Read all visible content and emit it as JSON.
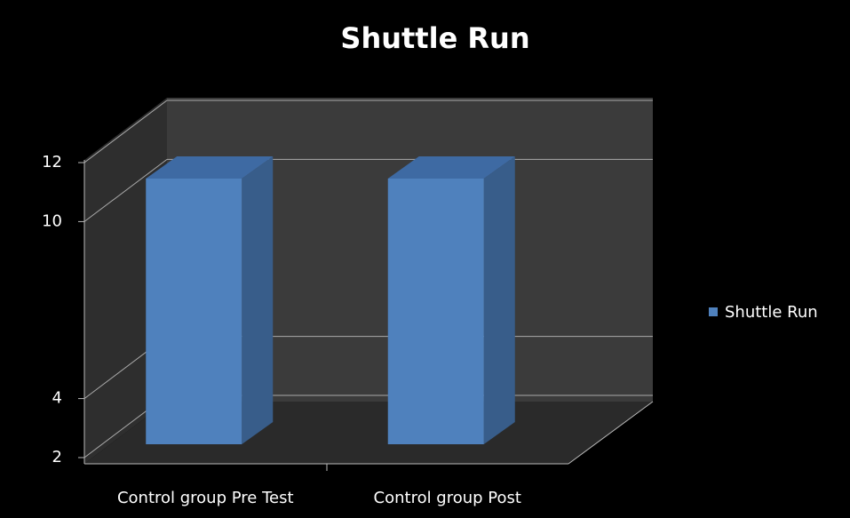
{
  "chart_data": {
    "type": "bar3d",
    "title": "Shuttle Run",
    "categories": [
      "Control group Pre Test",
      "Control group Post"
    ],
    "series": [
      {
        "name": "Shuttle Run",
        "color": "#4f81bd",
        "values": [
          11.7,
          11.7
        ]
      }
    ],
    "ylim": [
      2,
      12
    ],
    "yticks": [
      2,
      4,
      10,
      12
    ],
    "grid": true,
    "legend": "right"
  }
}
